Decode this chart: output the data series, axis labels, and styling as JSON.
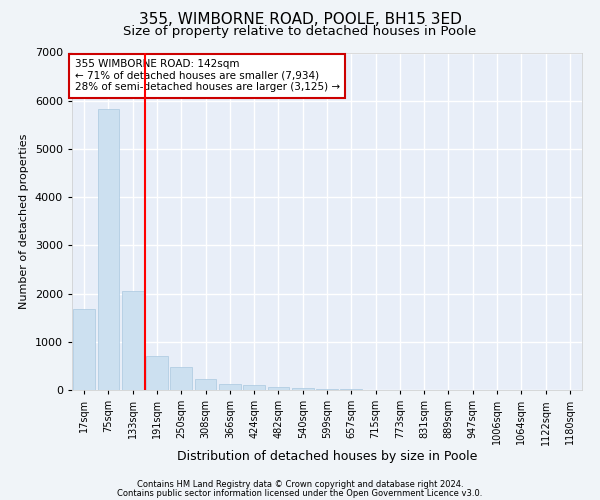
{
  "title1": "355, WIMBORNE ROAD, POOLE, BH15 3ED",
  "title2": "Size of property relative to detached houses in Poole",
  "xlabel": "Distribution of detached houses by size in Poole",
  "ylabel": "Number of detached properties",
  "categories": [
    "17sqm",
    "75sqm",
    "133sqm",
    "191sqm",
    "250sqm",
    "308sqm",
    "366sqm",
    "424sqm",
    "482sqm",
    "540sqm",
    "599sqm",
    "657sqm",
    "715sqm",
    "773sqm",
    "831sqm",
    "889sqm",
    "947sqm",
    "1006sqm",
    "1064sqm",
    "1122sqm",
    "1180sqm"
  ],
  "values": [
    1680,
    5820,
    2050,
    700,
    480,
    220,
    130,
    95,
    70,
    50,
    30,
    15,
    10,
    7,
    5,
    4,
    3,
    2,
    2,
    1,
    1
  ],
  "bar_color": "#cce0f0",
  "bar_edge_color": "#aac8e0",
  "red_line_index": 2,
  "annotation_text": "355 WIMBORNE ROAD: 142sqm\n← 71% of detached houses are smaller (7,934)\n28% of semi-detached houses are larger (3,125) →",
  "annotation_box_color": "#ffffff",
  "annotation_box_edge": "#cc0000",
  "ylim": [
    0,
    7000
  ],
  "yticks": [
    0,
    1000,
    2000,
    3000,
    4000,
    5000,
    6000,
    7000
  ],
  "footer1": "Contains HM Land Registry data © Crown copyright and database right 2024.",
  "footer2": "Contains public sector information licensed under the Open Government Licence v3.0.",
  "bg_color": "#f0f4f8",
  "plot_bg_color": "#e8eef8",
  "grid_color": "#ffffff",
  "title1_fontsize": 11,
  "title2_fontsize": 9.5
}
